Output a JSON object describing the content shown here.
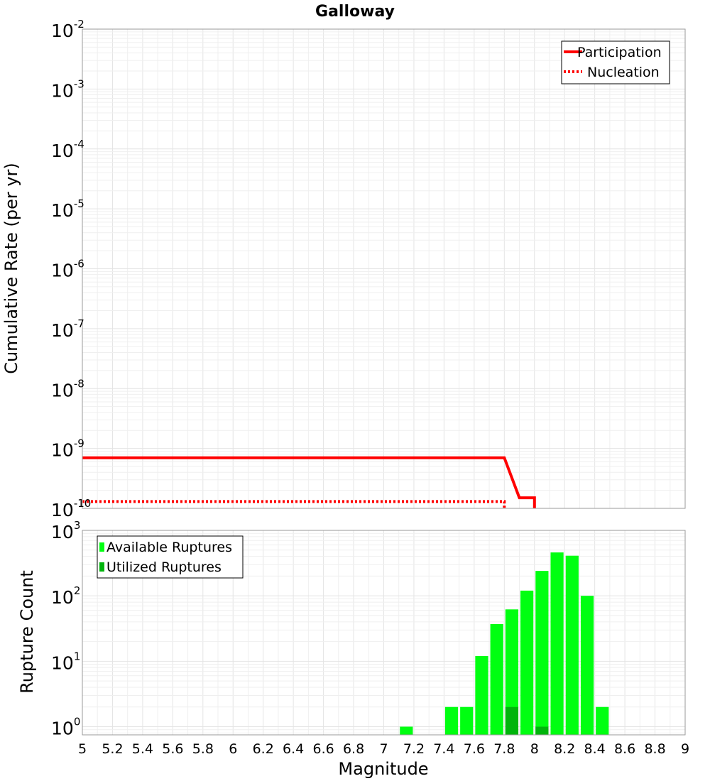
{
  "chart_data": [
    {
      "type": "line",
      "title": "Galloway",
      "xlabel": "",
      "ylabel": "Cumulative Rate (per yr)",
      "xlim": [
        5,
        9
      ],
      "ylim": [
        1e-10,
        0.01
      ],
      "yscale": "log",
      "grid": true,
      "legend_position": "top-right",
      "yticks": [
        {
          "base": "10",
          "exp": "-2"
        },
        {
          "base": "10",
          "exp": "-3"
        },
        {
          "base": "10",
          "exp": "-4"
        },
        {
          "base": "10",
          "exp": "-5"
        },
        {
          "base": "10",
          "exp": "-6"
        },
        {
          "base": "10",
          "exp": "-7"
        },
        {
          "base": "10",
          "exp": "-8"
        },
        {
          "base": "10",
          "exp": "-9"
        },
        {
          "base": "10",
          "exp": "-10"
        }
      ],
      "series": [
        {
          "name": "Participation",
          "color": "#ff0000",
          "style": "solid",
          "x": [
            5.0,
            7.8,
            7.9,
            8.0,
            8.0
          ],
          "y": [
            7e-10,
            7e-10,
            1.5e-10,
            1.5e-10,
            1e-10
          ]
        },
        {
          "name": "Nucleation",
          "color": "#ff0000",
          "style": "dotted",
          "x": [
            5.0,
            7.8,
            7.8
          ],
          "y": [
            1.3e-10,
            1.3e-10,
            1e-10
          ]
        }
      ]
    },
    {
      "type": "bar",
      "xlabel": "Magnitude",
      "ylabel": "Rupture Count",
      "xlim": [
        5,
        9
      ],
      "ylim": [
        0.75,
        1000
      ],
      "yscale": "log",
      "grid": true,
      "legend_position": "top-left",
      "yticks": [
        {
          "base": "10",
          "exp": "3",
          "value": 1000
        },
        {
          "base": "10",
          "exp": "2",
          "value": 100
        },
        {
          "base": "10",
          "exp": "1",
          "value": 10
        },
        {
          "base": "10",
          "exp": "0",
          "value": 1
        }
      ],
      "xticks": [
        "5",
        "5.2",
        "5.4",
        "5.6",
        "5.8",
        "6",
        "6.2",
        "6.4",
        "6.6",
        "6.8",
        "7",
        "7.2",
        "7.4",
        "7.6",
        "7.8",
        "8",
        "8.2",
        "8.4",
        "8.6",
        "8.8",
        "9"
      ],
      "bar_width": 0.1,
      "series": [
        {
          "name": "Available Ruptures",
          "color": "#00ff11",
          "x": [
            7.15,
            7.45,
            7.55,
            7.65,
            7.75,
            7.85,
            7.95,
            8.05,
            8.15,
            8.25,
            8.35,
            8.45
          ],
          "values": [
            1,
            2,
            2,
            12,
            37,
            62,
            120,
            240,
            460,
            410,
            100,
            2
          ]
        },
        {
          "name": "Utilized Ruptures",
          "color": "#00b40c",
          "x": [
            7.85,
            8.05
          ],
          "values": [
            2,
            1
          ]
        }
      ]
    }
  ]
}
